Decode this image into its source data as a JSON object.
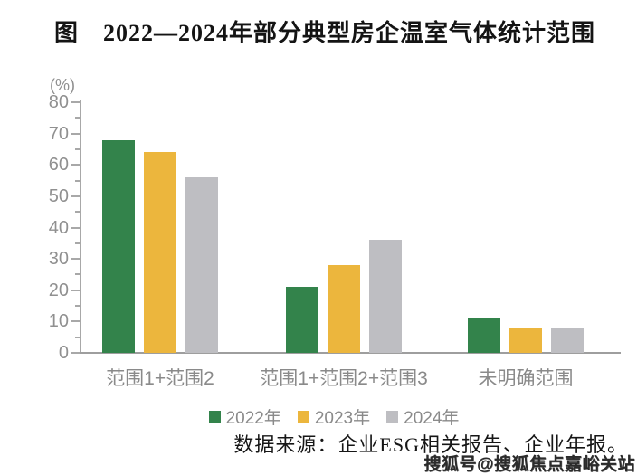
{
  "title": "图　2022—2024年部分典型房企温室气体统计范围",
  "chart_data": {
    "type": "bar",
    "title": "图　2022—2024年部分典型房企温室气体统计范围",
    "unit_label": "(%)",
    "xlabel": "",
    "ylabel": "(%)",
    "ylim": [
      0,
      80
    ],
    "yticks": [
      0,
      10,
      20,
      30,
      40,
      50,
      60,
      70,
      80
    ],
    "minor_tick_interval": 5,
    "grid": false,
    "legend_position": "bottom",
    "categories": [
      "范围1+范围2",
      "范围1+范围2+范围3",
      "未明确范围"
    ],
    "series": [
      {
        "name": "2022年",
        "color": "#33834B",
        "values": [
          68,
          21,
          11
        ]
      },
      {
        "name": "2023年",
        "color": "#ECB63D",
        "values": [
          64,
          28,
          8
        ]
      },
      {
        "name": "2024年",
        "color": "#BEBEC2",
        "values": [
          56,
          36,
          8
        ]
      }
    ]
  },
  "source_note": "数据来源：企业ESG相关报告、企业年报。",
  "watermark": "搜狐号@搜狐焦点嘉峪关站",
  "colors": {
    "series_2022": "#33834B",
    "series_2023": "#ECB63D",
    "series_2024": "#BEBEC2",
    "axis": "#a8a8a8",
    "axis_text": "#909090",
    "label_text": "#8a8a8a",
    "title_text": "#141414"
  }
}
